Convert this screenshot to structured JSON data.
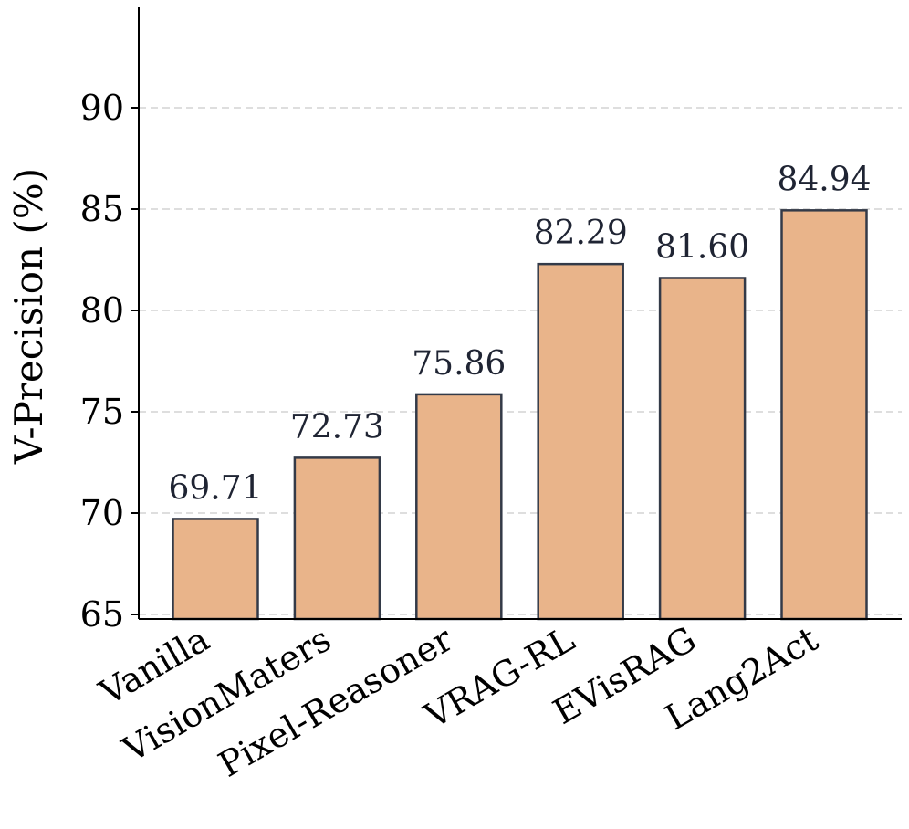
{
  "chart_data": {
    "type": "bar",
    "categories": [
      "Vanilla",
      "VisionMaters",
      "Pixel-Reasoner",
      "VRAG-RL",
      "EVisRAG",
      "Lang2Act"
    ],
    "values": [
      69.71,
      72.73,
      75.86,
      82.29,
      81.6,
      84.94
    ],
    "value_labels": [
      "69.71",
      "72.73",
      "75.86",
      "82.29",
      "81.60",
      "84.94"
    ],
    "ylabel": "V-Precision (%)",
    "ylim": [
      64.8,
      95
    ],
    "yticks": [
      65,
      70,
      75,
      80,
      85,
      90
    ],
    "ytick_labels": [
      "65",
      "70",
      "75",
      "80",
      "85",
      "90"
    ],
    "grid": "horizontal dashed",
    "colors": {
      "bar_fill": "#e9b48a",
      "bar_edge": "#333a48",
      "value_text": "#1f2433",
      "grid": "#d4d4d4"
    }
  }
}
